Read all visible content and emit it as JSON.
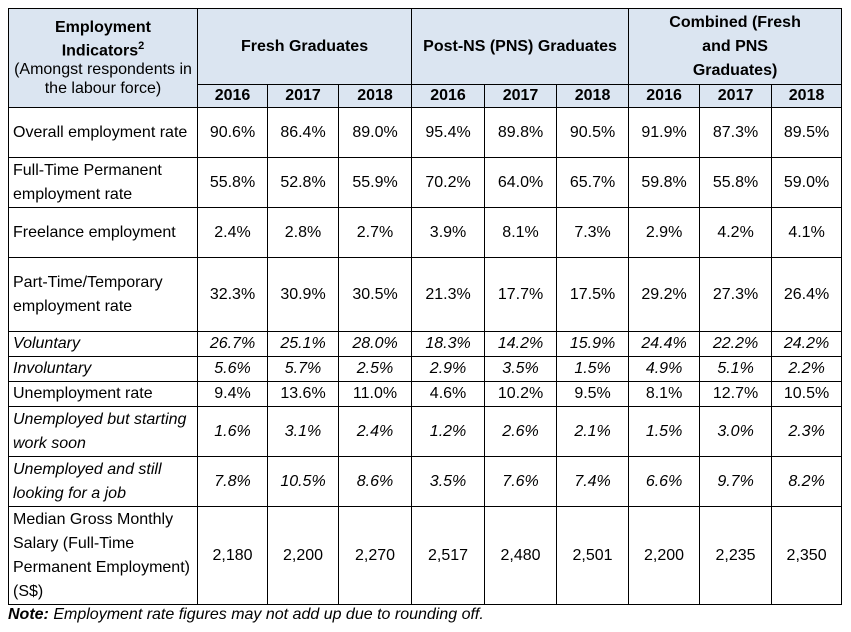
{
  "table": {
    "indicator_header": {
      "title": "Employment Indicators",
      "superscript": "2",
      "subtitle": "(Amongst respondents in the labour force)"
    },
    "groups": [
      {
        "label": "Fresh Graduates"
      },
      {
        "label": "Post-NS (PNS) Graduates"
      },
      {
        "label": "Combined (Fresh and PNS Graduates)"
      }
    ],
    "years": [
      "2016",
      "2017",
      "2018",
      "2016",
      "2017",
      "2018",
      "2016",
      "2017",
      "2018"
    ],
    "rows": [
      {
        "label": "Overall employment rate",
        "italic": false,
        "values": [
          "90.6%",
          "86.4%",
          "89.0%",
          "95.4%",
          "89.8%",
          "90.5%",
          "91.9%",
          "87.3%",
          "89.5%"
        ]
      },
      {
        "label": "Full-Time Permanent employment rate",
        "italic": false,
        "values": [
          "55.8%",
          "52.8%",
          "55.9%",
          "70.2%",
          "64.0%",
          "65.7%",
          "59.8%",
          "55.8%",
          "59.0%"
        ]
      },
      {
        "label": "Freelance employment",
        "italic": false,
        "values": [
          "2.4%",
          "2.8%",
          "2.7%",
          "3.9%",
          "8.1%",
          "7.3%",
          "2.9%",
          "4.2%",
          "4.1%"
        ]
      },
      {
        "label": "Part-Time/Temporary employment rate",
        "italic": false,
        "values": [
          "32.3%",
          "30.9%",
          "30.5%",
          "21.3%",
          "17.7%",
          "17.5%",
          "29.2%",
          "27.3%",
          "26.4%"
        ]
      },
      {
        "label": "Voluntary",
        "italic": true,
        "values": [
          "26.7%",
          "25.1%",
          "28.0%",
          "18.3%",
          "14.2%",
          "15.9%",
          "24.4%",
          "22.2%",
          "24.2%"
        ]
      },
      {
        "label": "Involuntary",
        "italic": true,
        "values": [
          "5.6%",
          "5.7%",
          "2.5%",
          "2.9%",
          "3.5%",
          "1.5%",
          "4.9%",
          "5.1%",
          "2.2%"
        ]
      },
      {
        "label": "Unemployment rate",
        "italic": false,
        "values": [
          "9.4%",
          "13.6%",
          "11.0%",
          "4.6%",
          "10.2%",
          "9.5%",
          "8.1%",
          "12.7%",
          "10.5%"
        ]
      },
      {
        "label": "Unemployed but starting work soon",
        "italic": true,
        "values": [
          "1.6%",
          "3.1%",
          "2.4%",
          "1.2%",
          "2.6%",
          "2.1%",
          "1.5%",
          "3.0%",
          "2.3%"
        ]
      },
      {
        "label": "Unemployed and still looking for a job",
        "italic": true,
        "values": [
          "7.8%",
          "10.5%",
          "8.6%",
          "3.5%",
          "7.6%",
          "7.4%",
          "6.6%",
          "9.7%",
          "8.2%"
        ]
      },
      {
        "label": "Median Gross Monthly Salary (Full-Time Permanent Employment) (S$)",
        "italic": false,
        "values": [
          "2,180",
          "2,200",
          "2,270",
          "2,517",
          "2,480",
          "2,501",
          "2,200",
          "2,235",
          "2,350"
        ]
      }
    ]
  },
  "note": {
    "prefix": "Note:",
    "text": " Employment rate figures may not add up due to rounding off."
  },
  "colors": {
    "header_fill": "#dbe5f1",
    "border": "#000000"
  }
}
